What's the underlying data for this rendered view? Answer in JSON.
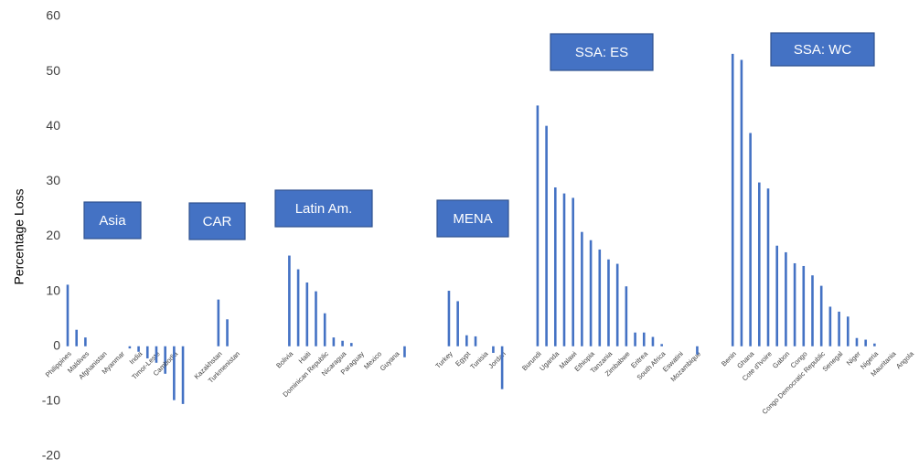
{
  "chart_data": {
    "type": "bar",
    "y_axis_label": "Percentage Loss",
    "color": "#4472c4",
    "grid": false,
    "ylim": [
      -20,
      60
    ],
    "yticks": [
      -20,
      -10,
      0,
      10,
      20,
      30,
      40,
      50,
      60
    ],
    "annotations": [
      {
        "text": "Asia"
      },
      {
        "text": "CAR"
      },
      {
        "text": "Latin Am."
      },
      {
        "text": "MENA"
      },
      {
        "text": "SSA: ES"
      },
      {
        "text": "SSA: WC"
      }
    ],
    "categories": [
      "Philippines",
      null,
      "Maldives",
      null,
      "Afghanistan",
      null,
      "Myanmar",
      null,
      "India",
      null,
      "Timor-Leste",
      null,
      "Cambodia",
      null,
      null,
      null,
      null,
      "Kazakhstan",
      null,
      "Turkmenistan",
      null,
      null,
      null,
      null,
      null,
      "Bolivia",
      null,
      "Haiti",
      null,
      "Dominican Republic",
      null,
      "Nicaragua",
      null,
      "Paraguay",
      null,
      "Mexico",
      null,
      "Guyana",
      null,
      null,
      null,
      null,
      null,
      "Turkey",
      null,
      "Egypt",
      null,
      "Tunisia",
      null,
      "Jordan",
      null,
      null,
      null,
      "Burundi",
      null,
      "Uganda",
      null,
      "Malawi",
      null,
      "Ethiopia",
      null,
      "Tanzania",
      null,
      "Zimbabwe",
      null,
      "Eritrea",
      null,
      "South Africa",
      null,
      "Eswatini",
      null,
      "Mozambique",
      null,
      null,
      null,
      "Benin",
      null,
      "Ghana",
      null,
      "Cote d'Ivoire",
      null,
      "Gabon",
      null,
      "Congo",
      null,
      "Congo Democratic Republic",
      null,
      "Senegal",
      null,
      "Niger",
      null,
      "Nigeria",
      null,
      "Mauritania",
      null,
      "Angola"
    ],
    "values": [
      11.2,
      3.0,
      1.6,
      0,
      0,
      0,
      0,
      -0.4,
      -1.0,
      -2.2,
      -3.0,
      -5.0,
      -9.8,
      -10.5,
      null,
      null,
      null,
      8.5,
      4.9,
      0,
      null,
      null,
      null,
      null,
      null,
      16.5,
      14.0,
      11.6,
      10.0,
      6.0,
      1.6,
      1.0,
      0.6,
      0,
      0,
      0,
      0,
      0,
      -2.0,
      null,
      null,
      null,
      null,
      10.1,
      8.2,
      2.0,
      1.8,
      0,
      -1.2,
      -7.8,
      null,
      null,
      null,
      43.8,
      40.1,
      28.9,
      27.8,
      27.0,
      20.8,
      19.3,
      17.6,
      15.8,
      15.0,
      10.9,
      2.5,
      2.5,
      1.7,
      0.4,
      0,
      0,
      0,
      -1.5,
      null,
      null,
      null,
      53.2,
      52.1,
      38.8,
      29.8,
      28.7,
      18.3,
      17.1,
      15.1,
      14.6,
      12.9,
      11.0,
      7.2,
      6.3,
      5.4,
      1.5,
      1.2,
      0.5,
      0,
      0,
      0,
      0
    ]
  }
}
